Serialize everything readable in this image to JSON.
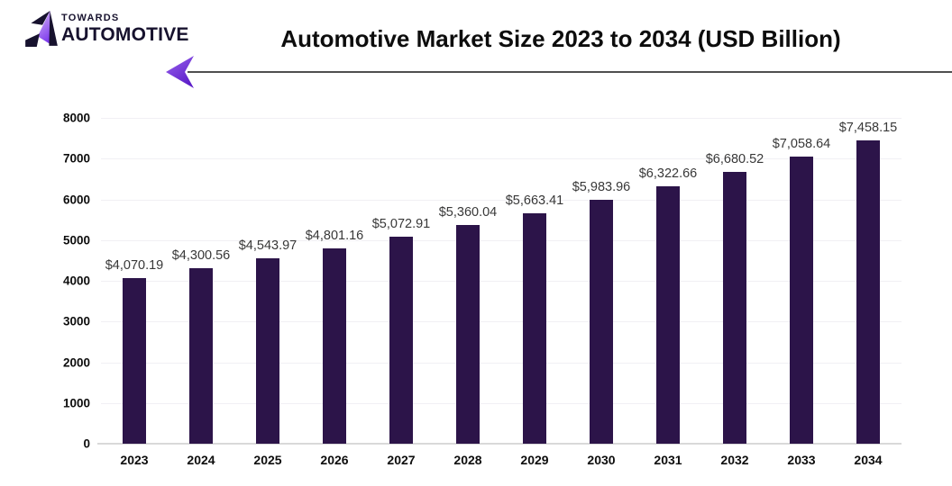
{
  "brand": {
    "towards": "TOWARDS",
    "automotive": "AUTOMOTIVE"
  },
  "header": {
    "title": "Automotive Market Size 2023 to 2034 (USD Billion)"
  },
  "colors": {
    "bar": "#2c1449",
    "arrow_purple_light": "#9a63ee",
    "arrow_purple_dark": "#5d1fc9",
    "divider_gray": "#4f4f4f",
    "logo_dark": "#17122e",
    "logo_purple_light": "#d9b8f5",
    "logo_purple_dark": "#7c3aed"
  },
  "chart_data": {
    "type": "bar",
    "title": "Automotive Market Size 2023 to 2034 (USD Billion)",
    "categories": [
      "2023",
      "2024",
      "2025",
      "2026",
      "2027",
      "2028",
      "2029",
      "2030",
      "2031",
      "2032",
      "2033",
      "2034"
    ],
    "values": [
      4070.19,
      4300.56,
      4543.97,
      4801.16,
      5072.91,
      5360.04,
      5663.41,
      5983.96,
      6322.66,
      6680.52,
      7058.64,
      7458.15
    ],
    "value_labels": [
      "$4,070.19",
      "$4,300.56",
      "$4,543.97",
      "$4,801.16",
      "$5,072.91",
      "$5,360.04",
      "$5,663.41",
      "$5,983.96",
      "$6,322.66",
      "$6,680.52",
      "$7,058.64",
      "$7,458.15"
    ],
    "xlabel": "",
    "ylabel": "",
    "ylim": [
      0,
      8000
    ],
    "yticks": [
      0,
      1000,
      2000,
      3000,
      4000,
      5000,
      6000,
      7000,
      8000
    ],
    "grid": true,
    "legend": false,
    "bar_color": "#2c1449"
  }
}
